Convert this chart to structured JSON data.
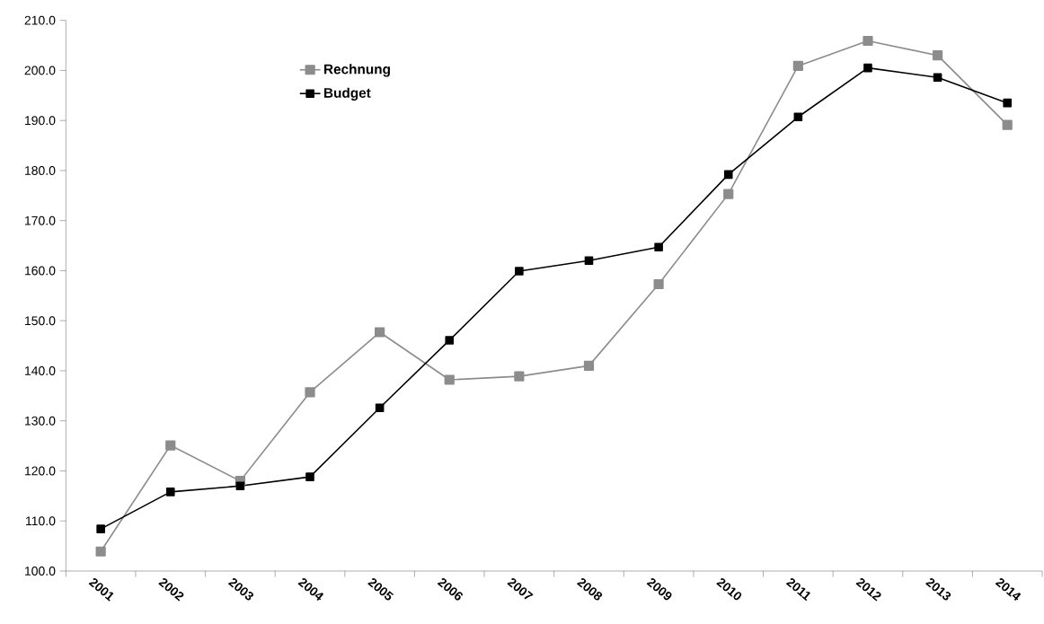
{
  "chart_data": {
    "type": "line",
    "categories": [
      "2001",
      "2002",
      "2003",
      "2004",
      "2005",
      "2006",
      "2007",
      "2008",
      "2009",
      "2010",
      "2011",
      "2012",
      "2013",
      "2014"
    ],
    "series": [
      {
        "name": "Rechnung",
        "color": "#8c8c8c",
        "values": [
          103.9,
          125.1,
          118.0,
          135.7,
          147.7,
          138.2,
          138.9,
          141.0,
          157.3,
          175.3,
          200.9,
          205.9,
          203.0,
          189.1
        ]
      },
      {
        "name": "Budget",
        "color": "#000000",
        "values": [
          108.4,
          115.8,
          117.0,
          118.8,
          132.6,
          146.1,
          159.9,
          162.0,
          164.7,
          179.2,
          190.7,
          200.5,
          198.6,
          193.5
        ]
      }
    ],
    "ylim": [
      100,
      210
    ],
    "yticks": [
      {
        "value": 100,
        "label": "100.0"
      },
      {
        "value": 110,
        "label": "110.0"
      },
      {
        "value": 120,
        "label": "120.0"
      },
      {
        "value": 130,
        "label": "130.0"
      },
      {
        "value": 140,
        "label": "140.0"
      },
      {
        "value": 150,
        "label": "150.0"
      },
      {
        "value": 160,
        "label": "160.0"
      },
      {
        "value": 170,
        "label": "170.0"
      },
      {
        "value": 180,
        "label": "180.0"
      },
      {
        "value": 190,
        "label": "190.0"
      },
      {
        "value": 200,
        "label": "200.0"
      },
      {
        "value": 210,
        "label": "210.0"
      }
    ],
    "legend": "top left",
    "marker": "square",
    "line_style": "solid",
    "grid": false
  }
}
